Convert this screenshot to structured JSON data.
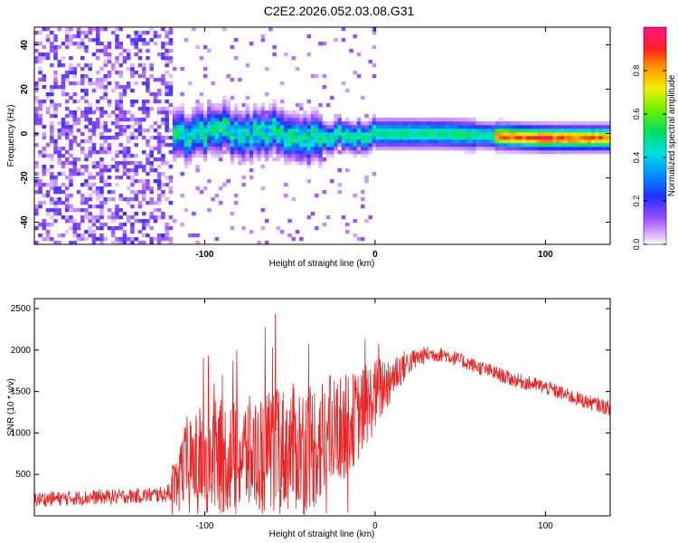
{
  "title": "C2E2.2026.052.03.08.G31",
  "chart_data": [
    {
      "type": "heatmap",
      "xlabel": "Height of straight line (km)",
      "ylabel": "Frequency (Hz)",
      "xlim": [
        -200,
        138
      ],
      "ylim": [
        -50,
        48
      ],
      "xticks": [
        "-100",
        "0",
        "100"
      ],
      "xtick_values": [
        -100,
        0,
        100
      ],
      "yticks": [
        "-40",
        "-20",
        "0",
        "20",
        "40"
      ],
      "ytick_values": [
        -40,
        -20,
        0,
        20,
        40
      ],
      "colorbar": {
        "label": "Normalized spectral amplitude",
        "ticks": [
          "0.0",
          "0.2",
          "0.4",
          "0.6",
          "0.8"
        ],
        "tick_values": [
          0.0,
          0.2,
          0.4,
          0.6,
          0.8
        ],
        "range": [
          0,
          1
        ],
        "colormap": "rainbow-violet-to-magenta"
      },
      "trace_center": [
        {
          "x": -120,
          "y": -2
        },
        {
          "x": -100,
          "y": 0
        },
        {
          "x": -90,
          "y": 3
        },
        {
          "x": -80,
          "y": -1
        },
        {
          "x": -60,
          "y": 1
        },
        {
          "x": -40,
          "y": -2
        },
        {
          "x": -30,
          "y": -1
        },
        {
          "x": 0,
          "y": 0
        },
        {
          "x": 40,
          "y": 0
        },
        {
          "x": 70,
          "y": -1
        },
        {
          "x": 100,
          "y": -2
        },
        {
          "x": 138,
          "y": -2
        }
      ],
      "noise_region_xmax": -120
    },
    {
      "type": "line",
      "xlabel": "Height of straight line (km)",
      "ylabel": "SNR (10 * v/v)",
      "xlim": [
        -200,
        138
      ],
      "ylim": [
        0,
        2620
      ],
      "xticks": [
        "-100",
        "0",
        "100"
      ],
      "xtick_values": [
        -100,
        0,
        100
      ],
      "yticks": [
        "500",
        "1000",
        "1500",
        "2000",
        "2500"
      ],
      "ytick_values": [
        500,
        1000,
        1500,
        2000,
        2500
      ],
      "line_color": "#ee2222",
      "envelope": {
        "x": [
          -200,
          -170,
          -140,
          -122,
          -115,
          -100,
          -80,
          -60,
          -40,
          -30,
          -20,
          -10,
          0,
          10,
          20,
          30,
          40,
          60,
          80,
          100,
          120,
          138
        ],
        "mean": [
          200,
          220,
          240,
          260,
          550,
          700,
          720,
          780,
          850,
          900,
          1050,
          1200,
          1450,
          1700,
          1850,
          1950,
          1950,
          1800,
          1650,
          1550,
          1400,
          1300
        ],
        "spread": [
          90,
          90,
          90,
          100,
          450,
          700,
          700,
          750,
          800,
          800,
          650,
          550,
          450,
          300,
          150,
          100,
          90,
          90,
          90,
          90,
          90,
          90
        ]
      }
    }
  ]
}
